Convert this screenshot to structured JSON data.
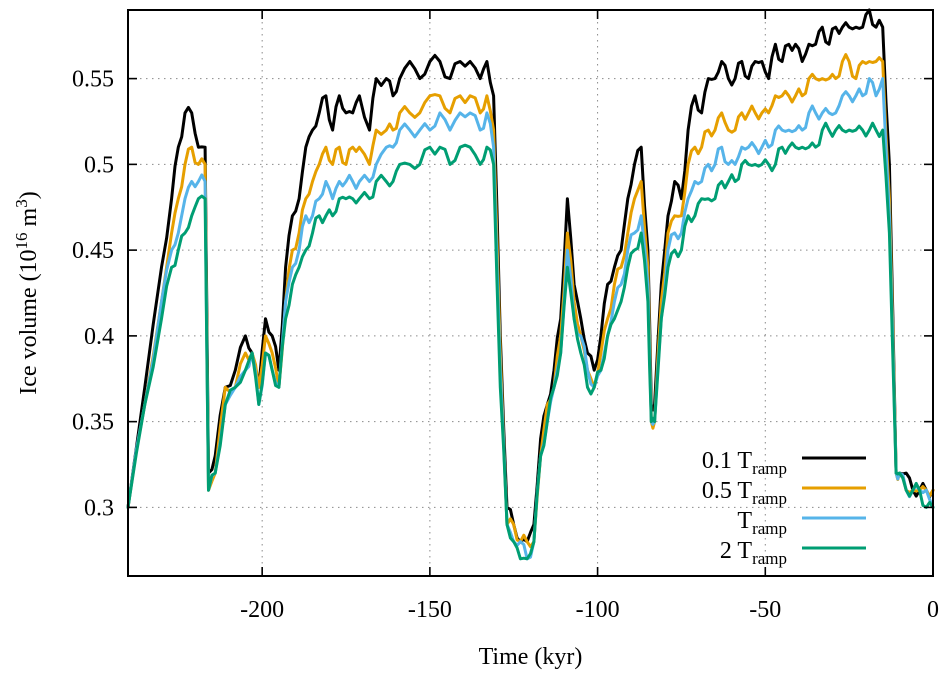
{
  "chart_data": {
    "type": "line",
    "xlabel": "Time (kyr)",
    "ylabel": {
      "main": "Ice volume (10",
      "sup1": "16",
      "mid": " m",
      "sup2": "3",
      "end": ")"
    },
    "xlim": [
      -240,
      0
    ],
    "ylim": [
      0.26,
      0.59
    ],
    "xticks": [
      -200,
      -150,
      -100,
      -50,
      0
    ],
    "yticks": [
      0.3,
      0.35,
      0.4,
      0.45,
      0.5,
      0.55
    ],
    "xtick_labels": [
      "-200",
      "-150",
      "-100",
      "-50",
      "0"
    ],
    "ytick_labels": [
      "0.3",
      "0.35",
      "0.4",
      "0.45",
      "0.5",
      "0.55"
    ],
    "grid": true,
    "legend_position": "bottom-right",
    "x": [
      -240,
      -235,
      -230,
      -227,
      -225,
      -223,
      -221,
      -219,
      -217,
      -216,
      -214,
      -211,
      -208,
      -205,
      -203,
      -201,
      -199,
      -197,
      -195,
      -193,
      -191,
      -189,
      -187,
      -185,
      -183,
      -181,
      -179,
      -177,
      -175,
      -173,
      -171,
      -168,
      -166,
      -163,
      -161,
      -159,
      -156,
      -153,
      -150,
      -147,
      -144,
      -141,
      -138,
      -135,
      -133,
      -131,
      -129,
      -127,
      -125,
      -123,
      -121,
      -119,
      -117,
      -115,
      -113,
      -111,
      -109,
      -107,
      -105,
      -103,
      -101,
      -99,
      -97,
      -95,
      -93,
      -91,
      -89,
      -87,
      -85,
      -84,
      -83,
      -81,
      -79,
      -77,
      -75,
      -73,
      -71,
      -69,
      -67,
      -65,
      -63,
      -61,
      -59,
      -57,
      -55,
      -53,
      -51,
      -49,
      -47,
      -45,
      -43,
      -41,
      -39,
      -37,
      -35,
      -33,
      -31,
      -29,
      -27,
      -25,
      -23,
      -21,
      -19,
      -17,
      -15,
      -13,
      -11,
      -10,
      -8,
      -6,
      -4,
      -2,
      0
    ],
    "series": [
      {
        "name_main": "0.1 T",
        "name_sub": "ramp",
        "color": "#000000",
        "values": [
          0.3,
          0.37,
          0.44,
          0.48,
          0.51,
          0.53,
          0.53,
          0.51,
          0.51,
          0.32,
          0.33,
          0.37,
          0.38,
          0.4,
          0.39,
          0.37,
          0.41,
          0.4,
          0.38,
          0.44,
          0.47,
          0.48,
          0.51,
          0.52,
          0.53,
          0.54,
          0.52,
          0.54,
          0.53,
          0.53,
          0.54,
          0.52,
          0.55,
          0.55,
          0.54,
          0.55,
          0.56,
          0.55,
          0.56,
          0.56,
          0.55,
          0.56,
          0.56,
          0.55,
          0.56,
          0.54,
          0.4,
          0.3,
          0.29,
          0.28,
          0.28,
          0.29,
          0.34,
          0.36,
          0.38,
          0.41,
          0.48,
          0.43,
          0.41,
          0.39,
          0.38,
          0.4,
          0.43,
          0.44,
          0.45,
          0.48,
          0.5,
          0.51,
          0.45,
          0.36,
          0.36,
          0.43,
          0.47,
          0.49,
          0.48,
          0.52,
          0.54,
          0.53,
          0.55,
          0.55,
          0.56,
          0.55,
          0.55,
          0.56,
          0.55,
          0.56,
          0.56,
          0.55,
          0.57,
          0.56,
          0.57,
          0.57,
          0.56,
          0.57,
          0.57,
          0.58,
          0.57,
          0.58,
          0.58,
          0.58,
          0.58,
          0.58,
          0.59,
          0.58,
          0.58,
          0.5,
          0.32,
          0.32,
          0.32,
          0.31,
          0.31,
          0.31,
          0.31
        ]
      },
      {
        "name_main": "0.5 T",
        "name_sub": "ramp",
        "color": "#E69F00",
        "values": [
          0.3,
          0.36,
          0.42,
          0.46,
          0.48,
          0.5,
          0.51,
          0.5,
          0.5,
          0.31,
          0.32,
          0.37,
          0.37,
          0.39,
          0.39,
          0.37,
          0.4,
          0.39,
          0.37,
          0.42,
          0.45,
          0.46,
          0.48,
          0.49,
          0.5,
          0.51,
          0.5,
          0.51,
          0.5,
          0.51,
          0.51,
          0.5,
          0.52,
          0.52,
          0.52,
          0.53,
          0.53,
          0.53,
          0.54,
          0.54,
          0.53,
          0.54,
          0.54,
          0.53,
          0.54,
          0.52,
          0.39,
          0.29,
          0.29,
          0.28,
          0.28,
          0.28,
          0.33,
          0.36,
          0.37,
          0.4,
          0.46,
          0.42,
          0.4,
          0.38,
          0.37,
          0.39,
          0.41,
          0.43,
          0.44,
          0.46,
          0.48,
          0.49,
          0.44,
          0.35,
          0.35,
          0.42,
          0.46,
          0.47,
          0.47,
          0.5,
          0.51,
          0.51,
          0.52,
          0.52,
          0.53,
          0.52,
          0.52,
          0.53,
          0.53,
          0.53,
          0.53,
          0.53,
          0.54,
          0.54,
          0.54,
          0.54,
          0.54,
          0.55,
          0.55,
          0.55,
          0.55,
          0.55,
          0.56,
          0.56,
          0.55,
          0.56,
          0.56,
          0.56,
          0.56,
          0.48,
          0.32,
          0.32,
          0.31,
          0.31,
          0.31,
          0.31,
          0.31
        ]
      },
      {
        "name_main": "T",
        "name_sub": "ramp",
        "color": "#56B4E9",
        "values": [
          0.3,
          0.36,
          0.42,
          0.45,
          0.46,
          0.48,
          0.49,
          0.49,
          0.49,
          0.31,
          0.32,
          0.36,
          0.37,
          0.38,
          0.39,
          0.36,
          0.39,
          0.38,
          0.37,
          0.42,
          0.44,
          0.45,
          0.47,
          0.47,
          0.48,
          0.49,
          0.48,
          0.49,
          0.49,
          0.49,
          0.49,
          0.49,
          0.5,
          0.51,
          0.51,
          0.52,
          0.52,
          0.52,
          0.52,
          0.53,
          0.52,
          0.53,
          0.53,
          0.52,
          0.53,
          0.51,
          0.38,
          0.29,
          0.28,
          0.28,
          0.27,
          0.28,
          0.33,
          0.35,
          0.37,
          0.39,
          0.45,
          0.41,
          0.4,
          0.38,
          0.37,
          0.38,
          0.4,
          0.42,
          0.43,
          0.45,
          0.46,
          0.47,
          0.43,
          0.35,
          0.35,
          0.41,
          0.45,
          0.46,
          0.46,
          0.48,
          0.49,
          0.49,
          0.5,
          0.5,
          0.51,
          0.5,
          0.5,
          0.51,
          0.51,
          0.51,
          0.51,
          0.51,
          0.52,
          0.52,
          0.52,
          0.52,
          0.52,
          0.53,
          0.53,
          0.53,
          0.53,
          0.53,
          0.54,
          0.54,
          0.54,
          0.54,
          0.55,
          0.54,
          0.55,
          0.47,
          0.32,
          0.32,
          0.31,
          0.31,
          0.31,
          0.31,
          0.3
        ]
      },
      {
        "name_main": "2 T",
        "name_sub": "ramp",
        "color": "#009E73",
        "values": [
          0.3,
          0.36,
          0.41,
          0.44,
          0.45,
          0.46,
          0.47,
          0.48,
          0.48,
          0.31,
          0.32,
          0.36,
          0.37,
          0.38,
          0.39,
          0.36,
          0.39,
          0.38,
          0.37,
          0.41,
          0.43,
          0.44,
          0.45,
          0.46,
          0.47,
          0.47,
          0.47,
          0.48,
          0.48,
          0.48,
          0.48,
          0.48,
          0.49,
          0.49,
          0.49,
          0.5,
          0.5,
          0.5,
          0.51,
          0.51,
          0.5,
          0.51,
          0.51,
          0.5,
          0.51,
          0.5,
          0.37,
          0.29,
          0.28,
          0.27,
          0.27,
          0.28,
          0.33,
          0.35,
          0.37,
          0.39,
          0.44,
          0.41,
          0.39,
          0.37,
          0.37,
          0.38,
          0.4,
          0.41,
          0.42,
          0.44,
          0.45,
          0.46,
          0.42,
          0.35,
          0.35,
          0.41,
          0.44,
          0.45,
          0.45,
          0.47,
          0.47,
          0.48,
          0.48,
          0.48,
          0.49,
          0.49,
          0.49,
          0.5,
          0.5,
          0.5,
          0.5,
          0.5,
          0.5,
          0.51,
          0.51,
          0.51,
          0.51,
          0.51,
          0.51,
          0.52,
          0.52,
          0.52,
          0.52,
          0.52,
          0.52,
          0.52,
          0.52,
          0.52,
          0.52,
          0.46,
          0.32,
          0.32,
          0.31,
          0.31,
          0.31,
          0.3,
          0.3
        ]
      }
    ]
  }
}
